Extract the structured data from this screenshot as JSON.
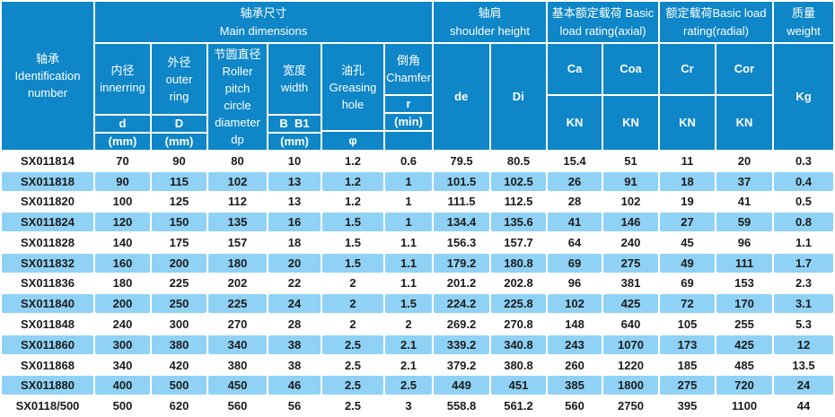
{
  "colors": {
    "header_blue": "#0e86c8",
    "stripe_blue": "#8fd2f6",
    "border_white": "#ffffff",
    "header_text": "#ffffff",
    "body_text": "#1b1b1b"
  },
  "header": {
    "id": {
      "lines": [
        "轴承",
        "Identification",
        "number"
      ]
    },
    "groups": {
      "main": {
        "lines": [
          "轴承尺寸",
          "Main dimensions"
        ]
      },
      "shoulder": {
        "lines": [
          "轴肩",
          "shoulder height"
        ]
      },
      "axial": {
        "lines": [
          "基本额定载荷 Basic",
          "load rating(axial)"
        ]
      },
      "radial": {
        "lines": [
          "额定载荷Basic load",
          "rating(radial)"
        ]
      },
      "weight": {
        "lines": [
          "质量",
          "weight"
        ]
      }
    },
    "subcols": {
      "inner": {
        "label": [
          "内径",
          "innerring"
        ],
        "sym": "d",
        "unit": "(mm)"
      },
      "outer": {
        "label": [
          "外径",
          "outer",
          "ring"
        ],
        "sym": "D",
        "unit": "(mm)"
      },
      "pitch": {
        "label": [
          "节圆直径",
          "Roller",
          "pitch",
          "circle",
          "diameter",
          "dp"
        ]
      },
      "width": {
        "label": [
          "宽度",
          "width"
        ],
        "sym": "B  B1",
        "unit": "(mm)"
      },
      "grease": {
        "label": [
          "油孔",
          "Greasing",
          "hole"
        ],
        "sym": "φ"
      },
      "chamfer": {
        "label": [
          "倒角",
          "Chamfer"
        ],
        "sym": "r",
        "unit": "(min)"
      },
      "de": "de",
      "di": "Di",
      "ca": {
        "sym": "Ca",
        "unit": "KN"
      },
      "coa": {
        "sym": "Coa",
        "unit": "KN"
      },
      "cr": {
        "sym": "Cr",
        "unit": "KN"
      },
      "cor": {
        "sym": "Cor",
        "unit": "KN"
      },
      "kg": "Kg"
    }
  },
  "rows": [
    [
      "SX011814",
      "70",
      "90",
      "80",
      "10",
      "1.2",
      "0.6",
      "79.5",
      "80.5",
      "15.4",
      "51",
      "11",
      "20",
      "0.3"
    ],
    [
      "SX011818",
      "90",
      "115",
      "102",
      "13",
      "1.2",
      "1",
      "101.5",
      "102.5",
      "26",
      "91",
      "18",
      "37",
      "0.4"
    ],
    [
      "SX011820",
      "100",
      "125",
      "112",
      "13",
      "1.2",
      "1",
      "111.5",
      "112.5",
      "28",
      "102",
      "19",
      "41",
      "0.5"
    ],
    [
      "SX011824",
      "120",
      "150",
      "135",
      "16",
      "1.5",
      "1",
      "134.4",
      "135.6",
      "41",
      "146",
      "27",
      "59",
      "0.8"
    ],
    [
      "SX011828",
      "140",
      "175",
      "157",
      "18",
      "1.5",
      "1.1",
      "156.3",
      "157.7",
      "64",
      "240",
      "45",
      "96",
      "1.1"
    ],
    [
      "SX011832",
      "160",
      "200",
      "180",
      "20",
      "1.5",
      "1.1",
      "179.2",
      "180.8",
      "69",
      "275",
      "49",
      "111",
      "1.7"
    ],
    [
      "SX011836",
      "180",
      "225",
      "202",
      "22",
      "2",
      "1.1",
      "201.2",
      "202.8",
      "96",
      "381",
      "69",
      "153",
      "2.3"
    ],
    [
      "SX011840",
      "200",
      "250",
      "225",
      "24",
      "2",
      "1.5",
      "224.2",
      "225.8",
      "102",
      "425",
      "72",
      "170",
      "3.1"
    ],
    [
      "SX011848",
      "240",
      "300",
      "270",
      "28",
      "2",
      "2",
      "269.2",
      "270.8",
      "148",
      "640",
      "105",
      "255",
      "5.3"
    ],
    [
      "SX011860",
      "300",
      "380",
      "340",
      "38",
      "2.5",
      "2.1",
      "339.2",
      "340.8",
      "243",
      "1070",
      "173",
      "425",
      "12"
    ],
    [
      "SX011868",
      "340",
      "420",
      "380",
      "38",
      "2.5",
      "2.1",
      "379.2",
      "380.8",
      "260",
      "1220",
      "185",
      "485",
      "13.5"
    ],
    [
      "SX011880",
      "400",
      "500",
      "450",
      "46",
      "2.5",
      "2.5",
      "449",
      "451",
      "385",
      "1800",
      "275",
      "720",
      "24"
    ],
    [
      "SX0118/500",
      "500",
      "620",
      "560",
      "56",
      "2.5",
      "3",
      "558.8",
      "561.2",
      "560",
      "2750",
      "395",
      "1100",
      "44"
    ]
  ]
}
